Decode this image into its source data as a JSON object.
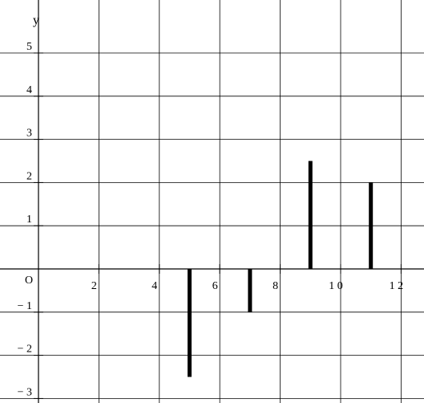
{
  "chart_data": {
    "type": "bar",
    "title": "",
    "xlabel": "",
    "ylabel": "y",
    "origin_label": "O",
    "xlim": [
      -0.2,
      12.8
    ],
    "ylim": [
      -3.1,
      5.9
    ],
    "grid": true,
    "x_ticks": [
      2,
      4,
      6,
      8,
      10,
      12
    ],
    "x_tick_labels": [
      "2",
      "4",
      "6",
      "8",
      "1 0",
      "1 2"
    ],
    "y_ticks": [
      -3,
      -2,
      -1,
      1,
      2,
      3,
      4,
      5
    ],
    "y_tick_labels": [
      "− 3",
      "− 2",
      "− 1",
      "1",
      "2",
      "3",
      "4",
      "5"
    ],
    "x": [
      5,
      7,
      9,
      11
    ],
    "values": [
      -2.5,
      -1,
      2.5,
      2
    ],
    "bar_color": "#000000"
  }
}
